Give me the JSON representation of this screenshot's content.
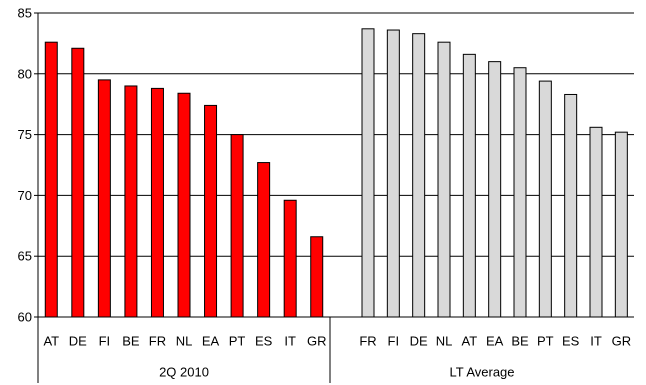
{
  "chart_data": {
    "type": "bar",
    "ylim": [
      60,
      85
    ],
    "yticks": [
      60,
      65,
      70,
      75,
      80,
      85
    ],
    "grid": "horizontal",
    "groups": [
      {
        "name": "2Q 2010",
        "color": "#ff0000",
        "categories": [
          "AT",
          "DE",
          "FI",
          "BE",
          "FR",
          "NL",
          "EA",
          "PT",
          "ES",
          "IT",
          "GR"
        ],
        "values": [
          82.6,
          82.1,
          79.5,
          79.0,
          78.8,
          78.4,
          77.4,
          75.0,
          72.7,
          69.6,
          66.6
        ]
      },
      {
        "name": "LT Average",
        "color": "#d9d9d9",
        "categories": [
          "FR",
          "FI",
          "DE",
          "NL",
          "AT",
          "EA",
          "BE",
          "PT",
          "ES",
          "IT",
          "GR"
        ],
        "values": [
          83.7,
          83.6,
          83.3,
          82.6,
          81.6,
          81.0,
          80.5,
          79.4,
          78.3,
          75.6,
          75.2
        ]
      }
    ]
  }
}
